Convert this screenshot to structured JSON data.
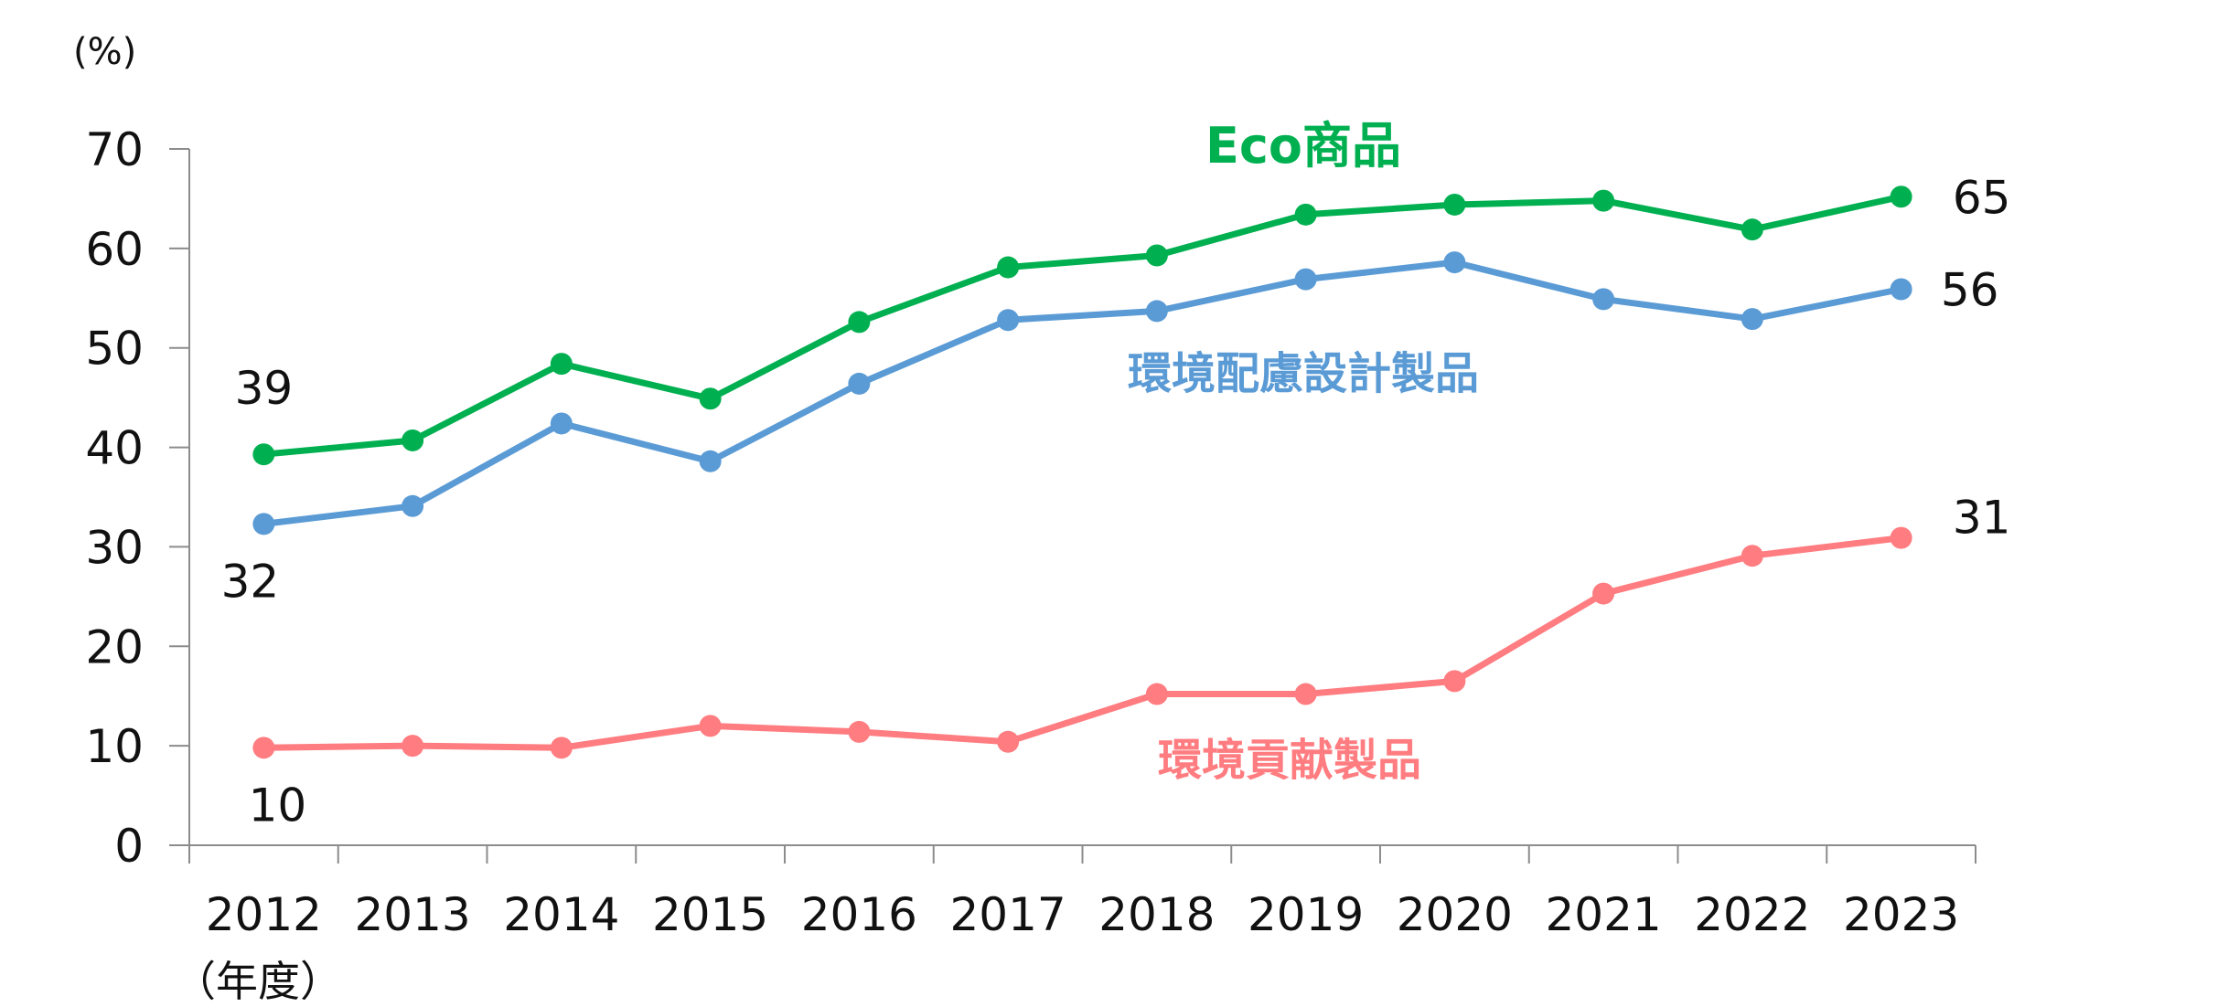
{
  "chart_data": {
    "type": "line",
    "ylabel": "(%)",
    "xlabel": "（年度）",
    "categories": [
      "2012",
      "2013",
      "2014",
      "2015",
      "2016",
      "2017",
      "2018",
      "2019",
      "2020",
      "2021",
      "2022",
      "2023"
    ],
    "ylim": [
      0,
      70
    ],
    "yticks": [
      "0",
      "10",
      "20",
      "30",
      "40",
      "50",
      "60",
      "70"
    ],
    "grid": false,
    "series": [
      {
        "name": "Eco商品",
        "color": "#00b050",
        "values": [
          39.3,
          40.7,
          48.4,
          44.9,
          52.6,
          58.1,
          59.3,
          63.4,
          64.4,
          64.8,
          61.9,
          65.2
        ],
        "label_first": "39",
        "label_last": "65"
      },
      {
        "name": "環境配慮設計製品",
        "color": "#5b9bd5",
        "values": [
          32.3,
          34.1,
          42.4,
          38.6,
          46.4,
          52.8,
          53.7,
          56.9,
          58.6,
          54.9,
          52.9,
          55.9
        ],
        "label_first": "32",
        "label_last": "56"
      },
      {
        "name": "環境貢献製品",
        "color": "#ff7c80",
        "values": [
          9.8,
          10.0,
          9.8,
          12.0,
          11.4,
          10.4,
          15.2,
          15.2,
          16.5,
          25.3,
          29.1,
          30.9
        ],
        "label_first": "10",
        "label_last": "31"
      }
    ]
  }
}
